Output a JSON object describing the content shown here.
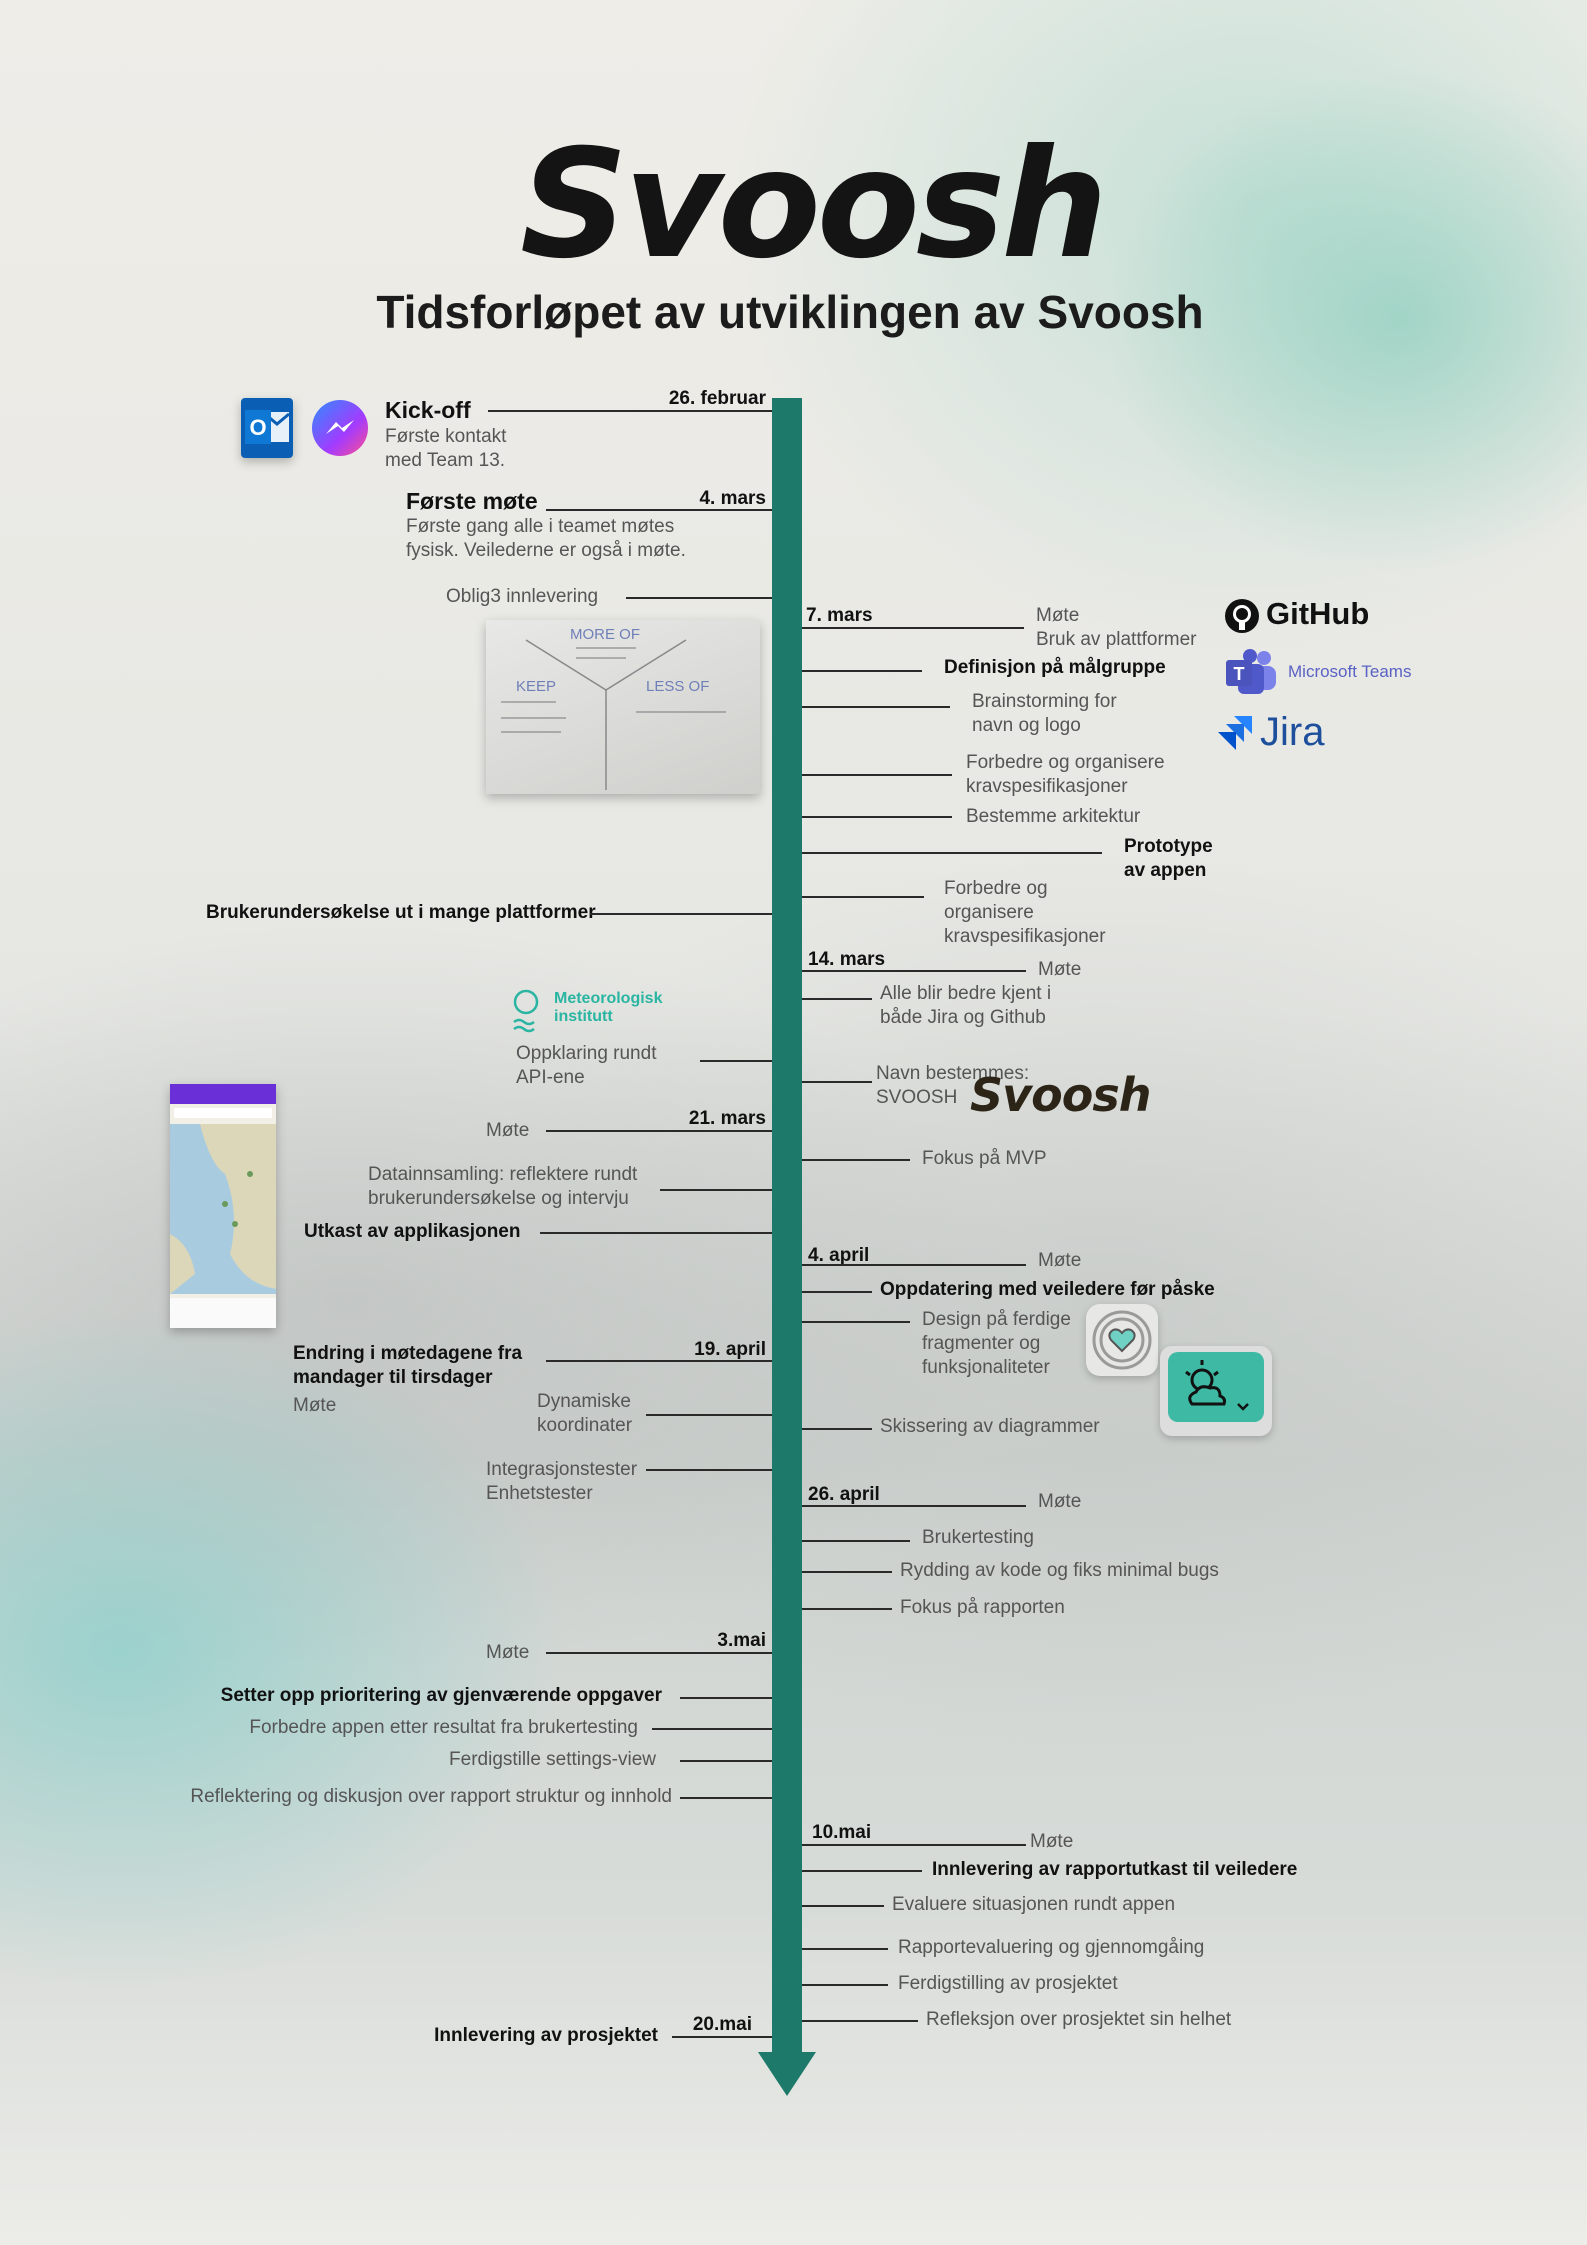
{
  "header": {
    "logo": "Svoosh",
    "title": "Tidsforløpet av utviklingen av Svoosh"
  },
  "colors": {
    "timeline": "#1d7a6b",
    "accent_teal": "#2ab5a3"
  },
  "dates": {
    "d1": "26. februar",
    "d2": "4. mars",
    "d3": "7. mars",
    "d4": "14. mars",
    "d5": "21. mars",
    "d6": "4. april",
    "d7": "19. april",
    "d8": "26. april",
    "d9": "3.mai",
    "d10": "10.mai",
    "d11": "20.mai"
  },
  "events": {
    "kickoff_title": "Kick-off",
    "kickoff_desc1": "Første kontakt",
    "kickoff_desc2": "med Team 13.",
    "first_meeting_title": "Første møte",
    "first_meeting_desc1": "Første gang alle i teamet møtes",
    "first_meeting_desc2": "fysisk. Veilederne er også i møte.",
    "oblig3": "Oblig3 innlevering",
    "m7_1": "Møte",
    "m7_2": "Bruk av plattformer",
    "m7_3": "Definisjon på målgruppe",
    "m7_4a": "Brainstorming for",
    "m7_4b": "navn og logo",
    "m7_5a": "Forbedre og organisere",
    "m7_5b": "kravspesifikasjoner",
    "m7_6": "Bestemme arkitektur",
    "m7_7a": "Prototype",
    "m7_7b": "av appen",
    "m7_8a": "Forbedre og",
    "m7_8b": "organisere",
    "m7_8c": "kravspesifikasjoner",
    "survey": "Brukerundersøkelse ut i mange plattformer",
    "m14_1": "Møte",
    "m14_2a": "Alle blir bedre kjent i",
    "m14_2b": "både Jira og Github",
    "api_a": "Oppklaring rundt",
    "api_b": "API-ene",
    "name_a": "Navn bestemmes:",
    "name_b": "SVOOSH",
    "m21_1": "Møte",
    "m21_2": "Fokus på MVP",
    "data_a": "Datainnsamling: reflektere rundt",
    "data_b": "brukerundersøkelse og intervju",
    "draft": "Utkast av applikasjonen",
    "m4a_1": "Møte",
    "m4a_2": "Oppdatering med veiledere før påske",
    "m4a_3a": "Design på ferdige",
    "m4a_3b": "fragmenter og",
    "m4a_3c": "funksjonaliteter",
    "m19_a": "Endring i møtedagene fra",
    "m19_b": "mandager til tirsdager",
    "m19_c": "Møte",
    "dyn_a": "Dynamiske",
    "dyn_b": "koordinater",
    "sketch": "Skissering av diagrammer",
    "tests_a": "Integrasjonstester",
    "tests_b": "Enhetstester",
    "m26_1": "Møte",
    "m26_2": "Brukertesting",
    "m26_3": "Rydding av kode og fiks minimal bugs",
    "m26_4": "Fokus på rapporten",
    "m3_1": "Møte",
    "m3_2": "Setter opp prioritering av gjenværende oppgaver",
    "m3_3": "Forbedre appen etter resultat fra brukertesting",
    "m3_4": "Ferdigstille settings-view",
    "m3_5": "Reflektering og diskusjon over rapport struktur og innhold",
    "m10_1": "Møte",
    "m10_2": "Innlevering av rapportutkast til veiledere",
    "m10_3": "Evaluere situasjonen rundt appen",
    "m10_4": "Rapportevaluering og gjennomgåing",
    "m10_5": "Ferdigstilling av prosjektet",
    "m10_6": "Refleksjon over prosjektet sin helhet",
    "final": "Innlevering av prosjektet"
  },
  "brands": {
    "github": "GitHub",
    "teams": "Microsoft Teams",
    "jira": "Jira",
    "met_a": "Meteorologisk",
    "met_b": "institutt",
    "svoosh_small": "Svoosh"
  },
  "whiteboard": {
    "more_of": "MORE OF",
    "keep": "KEEP",
    "less_of": "LESS OF"
  },
  "icons": [
    "outlook-icon",
    "messenger-icon",
    "github-icon",
    "teams-icon",
    "jira-icon",
    "met-institute-icon",
    "heart-icon",
    "weather-icon"
  ]
}
